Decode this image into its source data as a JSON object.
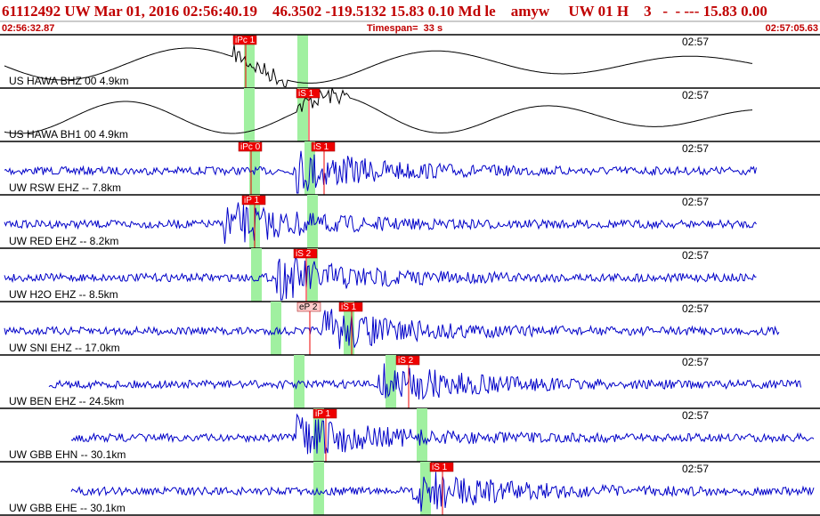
{
  "header": {
    "title": "61112492 UW Mar 01, 2016 02:56:40.19    46.3502 -119.5132 15.83 0.10 Md le    amyw     UW 01 H    3   -  - --- 15.83 0.00",
    "start_time": "02:56:32.87",
    "timespan": "Timespan=  33 s",
    "end_time": "02:57:05.63"
  },
  "traces": [
    {
      "label": "US HAWA BHZ 00 4.9km",
      "time": "02:57",
      "picks": [
        {
          "label": "iPc 1"
        }
      ]
    },
    {
      "label": "US HAWA BH1 00 4.9km",
      "time": "02:57",
      "picks": [
        {
          "label": "iS 1"
        }
      ]
    },
    {
      "label": "UW RSW EHZ -- 7.8km",
      "time": "02:57",
      "picks": [
        {
          "label": "iPc 0"
        },
        {
          "label": "iS 1"
        }
      ]
    },
    {
      "label": "UW RED EHZ -- 8.2km",
      "time": "02:57",
      "picks": [
        {
          "label": "iP 1"
        }
      ]
    },
    {
      "label": "UW H2O EHZ -- 8.5km",
      "time": "02:57",
      "picks": [
        {
          "label": "iS 2"
        }
      ]
    },
    {
      "label": "UW SNI EHZ -- 17.0km",
      "time": "02:57",
      "picks": [
        {
          "label": "eP 2"
        },
        {
          "label": "iS 1"
        }
      ]
    },
    {
      "label": "UW BEN EHZ -- 24.5km",
      "time": "02:57",
      "picks": [
        {
          "label": "iS 2"
        }
      ]
    },
    {
      "label": "UW GBB EHN -- 30.1km",
      "time": "02:57",
      "picks": [
        {
          "label": "iP 1"
        }
      ]
    },
    {
      "label": "UW GBB EHE -- 30.1km",
      "time": "02:57",
      "picks": [
        {
          "label": "iS 1"
        }
      ]
    }
  ]
}
